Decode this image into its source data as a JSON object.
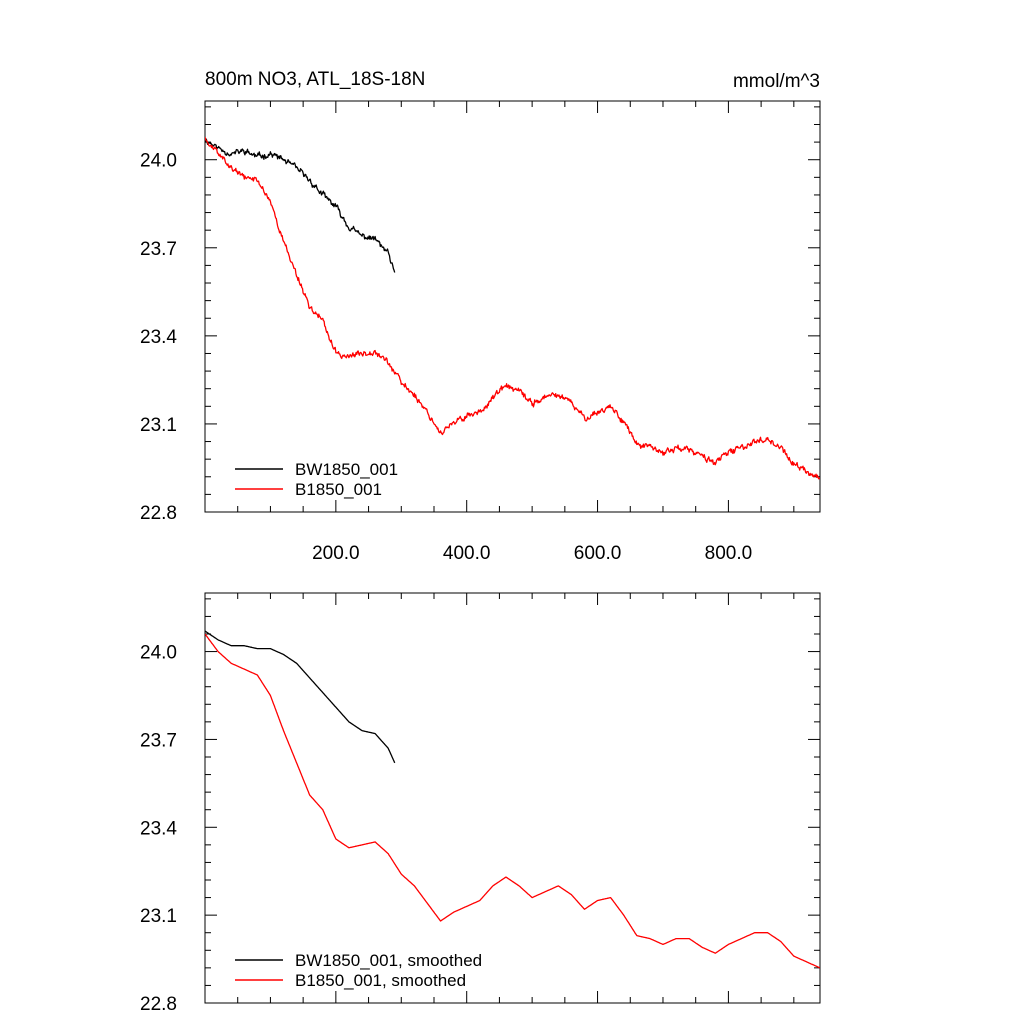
{
  "figure": {
    "title_left": "800m NO3, ATL_18S-18N",
    "title_right": "mmol/m^3"
  },
  "chart_data": [
    {
      "type": "line",
      "title": "800m NO3, ATL_18S-18N",
      "units": "mmol/m^3",
      "xlim": [
        0,
        940
      ],
      "ylim": [
        22.8,
        24.2
      ],
      "xticks": [
        200,
        400,
        600,
        800
      ],
      "xtick_labels": [
        "200.0",
        "400.0",
        "600.0",
        "800.0"
      ],
      "yticks": [
        22.8,
        23.1,
        23.4,
        23.7,
        24.0
      ],
      "ytick_labels": [
        "22.8",
        "23.1",
        "23.4",
        "23.7",
        "24.0"
      ],
      "show_xtick_labels": true,
      "legend_position": "bottom-left",
      "series": [
        {
          "name": "BW1850_001",
          "color": "#000000",
          "noise": 0.009,
          "points": [
            [
              0,
              24.07
            ],
            [
              20,
              24.04
            ],
            [
              40,
              24.02
            ],
            [
              60,
              24.03
            ],
            [
              80,
              24.01
            ],
            [
              100,
              24.02
            ],
            [
              120,
              24.0
            ],
            [
              140,
              23.97
            ],
            [
              160,
              23.93
            ],
            [
              180,
              23.88
            ],
            [
              200,
              23.84
            ],
            [
              220,
              23.77
            ],
            [
              240,
              23.74
            ],
            [
              260,
              23.73
            ],
            [
              280,
              23.68
            ],
            [
              290,
              23.61
            ]
          ]
        },
        {
          "name": "B1850_001",
          "color": "#ff0000",
          "noise": 0.009,
          "points": [
            [
              0,
              24.07
            ],
            [
              20,
              24.02
            ],
            [
              40,
              23.97
            ],
            [
              60,
              23.94
            ],
            [
              80,
              23.93
            ],
            [
              100,
              23.86
            ],
            [
              120,
              23.72
            ],
            [
              140,
              23.61
            ],
            [
              160,
              23.5
            ],
            [
              180,
              23.45
            ],
            [
              200,
              23.34
            ],
            [
              220,
              23.33
            ],
            [
              240,
              23.34
            ],
            [
              260,
              23.35
            ],
            [
              280,
              23.31
            ],
            [
              300,
              23.24
            ],
            [
              320,
              23.2
            ],
            [
              340,
              23.14
            ],
            [
              360,
              23.07
            ],
            [
              380,
              23.1
            ],
            [
              400,
              23.13
            ],
            [
              420,
              23.14
            ],
            [
              440,
              23.19
            ],
            [
              460,
              23.23
            ],
            [
              480,
              23.21
            ],
            [
              500,
              23.17
            ],
            [
              520,
              23.19
            ],
            [
              540,
              23.2
            ],
            [
              560,
              23.17
            ],
            [
              580,
              23.12
            ],
            [
              600,
              23.14
            ],
            [
              620,
              23.16
            ],
            [
              640,
              23.11
            ],
            [
              660,
              23.03
            ],
            [
              680,
              23.02
            ],
            [
              700,
              23.0
            ],
            [
              720,
              23.02
            ],
            [
              740,
              23.01
            ],
            [
              760,
              22.99
            ],
            [
              780,
              22.97
            ],
            [
              800,
              23.0
            ],
            [
              820,
              23.02
            ],
            [
              840,
              23.04
            ],
            [
              860,
              23.05
            ],
            [
              880,
              23.02
            ],
            [
              900,
              22.96
            ],
            [
              920,
              22.94
            ],
            [
              940,
              22.91
            ]
          ]
        }
      ]
    },
    {
      "type": "line",
      "title": "",
      "xlim": [
        0,
        940
      ],
      "ylim": [
        22.8,
        24.2
      ],
      "xticks": [
        200,
        400,
        600,
        800
      ],
      "xtick_labels": [
        "",
        "",
        "",
        ""
      ],
      "yticks": [
        22.8,
        23.1,
        23.4,
        23.7,
        24.0
      ],
      "ytick_labels": [
        "22.8",
        "23.1",
        "23.4",
        "23.7",
        "24.0"
      ],
      "show_xtick_labels": false,
      "legend_position": "bottom-left",
      "series": [
        {
          "name": "BW1850_001, smoothed",
          "color": "#000000",
          "noise": 0,
          "points": [
            [
              0,
              24.07
            ],
            [
              20,
              24.04
            ],
            [
              40,
              24.02
            ],
            [
              60,
              24.02
            ],
            [
              80,
              24.01
            ],
            [
              100,
              24.01
            ],
            [
              120,
              23.99
            ],
            [
              140,
              23.96
            ],
            [
              160,
              23.91
            ],
            [
              180,
              23.86
            ],
            [
              200,
              23.81
            ],
            [
              220,
              23.76
            ],
            [
              240,
              23.73
            ],
            [
              260,
              23.72
            ],
            [
              280,
              23.67
            ],
            [
              290,
              23.62
            ]
          ]
        },
        {
          "name": "B1850_001, smoothed",
          "color": "#ff0000",
          "noise": 0,
          "points": [
            [
              0,
              24.06
            ],
            [
              20,
              24.0
            ],
            [
              40,
              23.96
            ],
            [
              60,
              23.94
            ],
            [
              80,
              23.92
            ],
            [
              100,
              23.85
            ],
            [
              120,
              23.73
            ],
            [
              140,
              23.62
            ],
            [
              160,
              23.51
            ],
            [
              180,
              23.46
            ],
            [
              200,
              23.36
            ],
            [
              220,
              23.33
            ],
            [
              240,
              23.34
            ],
            [
              260,
              23.35
            ],
            [
              280,
              23.31
            ],
            [
              300,
              23.24
            ],
            [
              320,
              23.2
            ],
            [
              340,
              23.14
            ],
            [
              360,
              23.08
            ],
            [
              380,
              23.11
            ],
            [
              400,
              23.13
            ],
            [
              420,
              23.15
            ],
            [
              440,
              23.2
            ],
            [
              460,
              23.23
            ],
            [
              480,
              23.2
            ],
            [
              500,
              23.16
            ],
            [
              520,
              23.18
            ],
            [
              540,
              23.2
            ],
            [
              560,
              23.17
            ],
            [
              580,
              23.12
            ],
            [
              600,
              23.15
            ],
            [
              620,
              23.16
            ],
            [
              640,
              23.1
            ],
            [
              660,
              23.03
            ],
            [
              680,
              23.02
            ],
            [
              700,
              23.0
            ],
            [
              720,
              23.02
            ],
            [
              740,
              23.02
            ],
            [
              760,
              22.99
            ],
            [
              780,
              22.97
            ],
            [
              800,
              23.0
            ],
            [
              820,
              23.02
            ],
            [
              840,
              23.04
            ],
            [
              860,
              23.04
            ],
            [
              880,
              23.01
            ],
            [
              900,
              22.96
            ],
            [
              920,
              22.94
            ],
            [
              940,
              22.92
            ]
          ]
        }
      ]
    }
  ]
}
